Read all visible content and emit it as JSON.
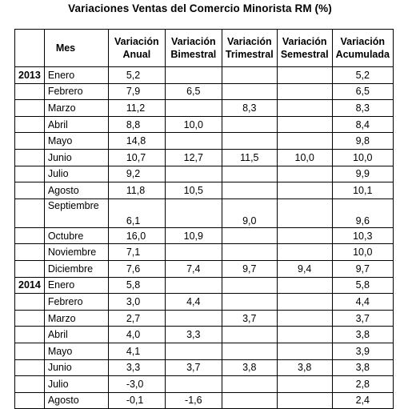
{
  "title": "Variaciones Ventas del Comercio Minorista RM (%)",
  "headers": {
    "year": "",
    "mes": "Mes",
    "anual": "Variación Anual",
    "bimestral": "Variación Bimestral",
    "trimestral": "Variación Trimestral",
    "semestral": "Variación Semestral",
    "acumulada": "Variación Acumulada"
  },
  "rows": [
    {
      "year": "2013",
      "mes": "Enero",
      "anual": "5,2",
      "bimestral": "",
      "trimestral": "",
      "semestral": "",
      "acumulada": "5,2"
    },
    {
      "year": "",
      "mes": "Febrero",
      "anual": "7,9",
      "bimestral": "6,5",
      "trimestral": "",
      "semestral": "",
      "acumulada": "6,5"
    },
    {
      "year": "",
      "mes": "Marzo",
      "anual": "11,2",
      "bimestral": "",
      "trimestral": "8,3",
      "semestral": "",
      "acumulada": "8,3"
    },
    {
      "year": "",
      "mes": "Abril",
      "anual": "8,8",
      "bimestral": "10,0",
      "trimestral": "",
      "semestral": "",
      "acumulada": "8,4"
    },
    {
      "year": "",
      "mes": "Mayo",
      "anual": "14,8",
      "bimestral": "",
      "trimestral": "",
      "semestral": "",
      "acumulada": "9,8"
    },
    {
      "year": "",
      "mes": "Junio",
      "anual": "10,7",
      "bimestral": "12,7",
      "trimestral": "11,5",
      "semestral": "10,0",
      "acumulada": "10,0"
    },
    {
      "year": "",
      "mes": "Julio",
      "anual": "9,2",
      "bimestral": "",
      "trimestral": "",
      "semestral": "",
      "acumulada": "9,9"
    },
    {
      "year": "",
      "mes": "Agosto",
      "anual": "11,8",
      "bimestral": "10,5",
      "trimestral": "",
      "semestral": "",
      "acumulada": "10,1"
    },
    {
      "year": "",
      "mes": "Septiembre",
      "anual": "6,1",
      "bimestral": "",
      "trimestral": "9,0",
      "semestral": "",
      "acumulada": "9,6",
      "tall": true
    },
    {
      "year": "",
      "mes": "Octubre",
      "anual": "16,0",
      "bimestral": "10,9",
      "trimestral": "",
      "semestral": "",
      "acumulada": "10,3"
    },
    {
      "year": "",
      "mes": "Noviembre",
      "anual": "7,1",
      "bimestral": "",
      "trimestral": "",
      "semestral": "",
      "acumulada": "10,0"
    },
    {
      "year": "",
      "mes": "Diciembre",
      "anual": "7,6",
      "bimestral": "7,4",
      "trimestral": "9,7",
      "semestral": "9,4",
      "acumulada": "9,7"
    },
    {
      "year": "2014",
      "mes": "Enero",
      "anual": "5,8",
      "bimestral": "",
      "trimestral": "",
      "semestral": "",
      "acumulada": "5,8"
    },
    {
      "year": "",
      "mes": "Febrero",
      "anual": "3,0",
      "bimestral": "4,4",
      "trimestral": "",
      "semestral": "",
      "acumulada": "4,4"
    },
    {
      "year": "",
      "mes": "Marzo",
      "anual": "2,7",
      "bimestral": "",
      "trimestral": "3,7",
      "semestral": "",
      "acumulada": "3,7"
    },
    {
      "year": "",
      "mes": "Abril",
      "anual": "4,0",
      "bimestral": "3,3",
      "trimestral": "",
      "semestral": "",
      "acumulada": "3,8"
    },
    {
      "year": "",
      "mes": "Mayo",
      "anual": "4,1",
      "bimestral": "",
      "trimestral": "",
      "semestral": "",
      "acumulada": "3,9"
    },
    {
      "year": "",
      "mes": "Junio",
      "anual": "3,3",
      "bimestral": "3,7",
      "trimestral": "3,8",
      "semestral": "3,8",
      "acumulada": "3,8"
    },
    {
      "year": "",
      "mes": "Julio",
      "anual": "-3,0",
      "bimestral": "",
      "trimestral": "",
      "semestral": "",
      "acumulada": "2,8"
    },
    {
      "year": "",
      "mes": "Agosto",
      "anual": "-0,1",
      "bimestral": "-1,6",
      "trimestral": "",
      "semestral": "",
      "acumulada": "2,4"
    }
  ]
}
